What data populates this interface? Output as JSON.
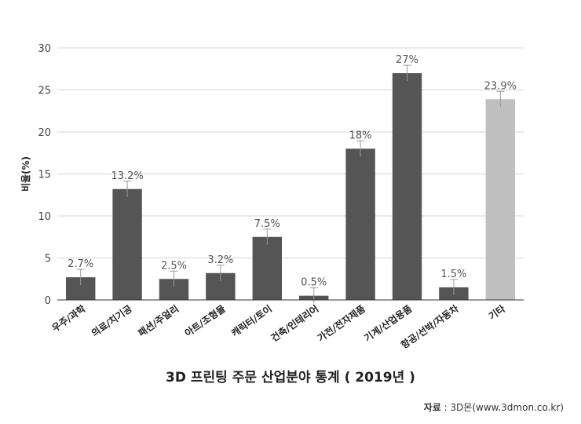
{
  "chart_data": {
    "type": "bar",
    "title": "3D 프린팅 주문 산업분야 통계 ( 2019년 )",
    "ylabel": "비율(%)",
    "xlabel": "",
    "ylim": [
      0,
      30
    ],
    "yticks": [
      0,
      5,
      10,
      15,
      20,
      25,
      30
    ],
    "grid": true,
    "categories": [
      "우주/과학",
      "의료/치기공",
      "패션/주얼리",
      "아트/조형물",
      "캐릭터/토이",
      "건축/인테리어",
      "가전/전자제품",
      "기계/산업용품",
      "항공/선박/자동차",
      "기타"
    ],
    "values": [
      2.7,
      13.2,
      2.5,
      3.2,
      7.5,
      0.5,
      18,
      27,
      1.5,
      23.9
    ],
    "data_labels": [
      "2.7%",
      "13.2%",
      "2.5%",
      "3.2%",
      "7.5%",
      "0.5%",
      "18%",
      "27%",
      "1.5%",
      "23.9%"
    ],
    "colors": [
      "#555555",
      "#555555",
      "#555555",
      "#555555",
      "#555555",
      "#555555",
      "#555555",
      "#555555",
      "#555555",
      "#c0c0c0"
    ]
  },
  "source": {
    "label": "자료",
    "text": " : 3D몬(www.3dmon.co.kr)"
  }
}
